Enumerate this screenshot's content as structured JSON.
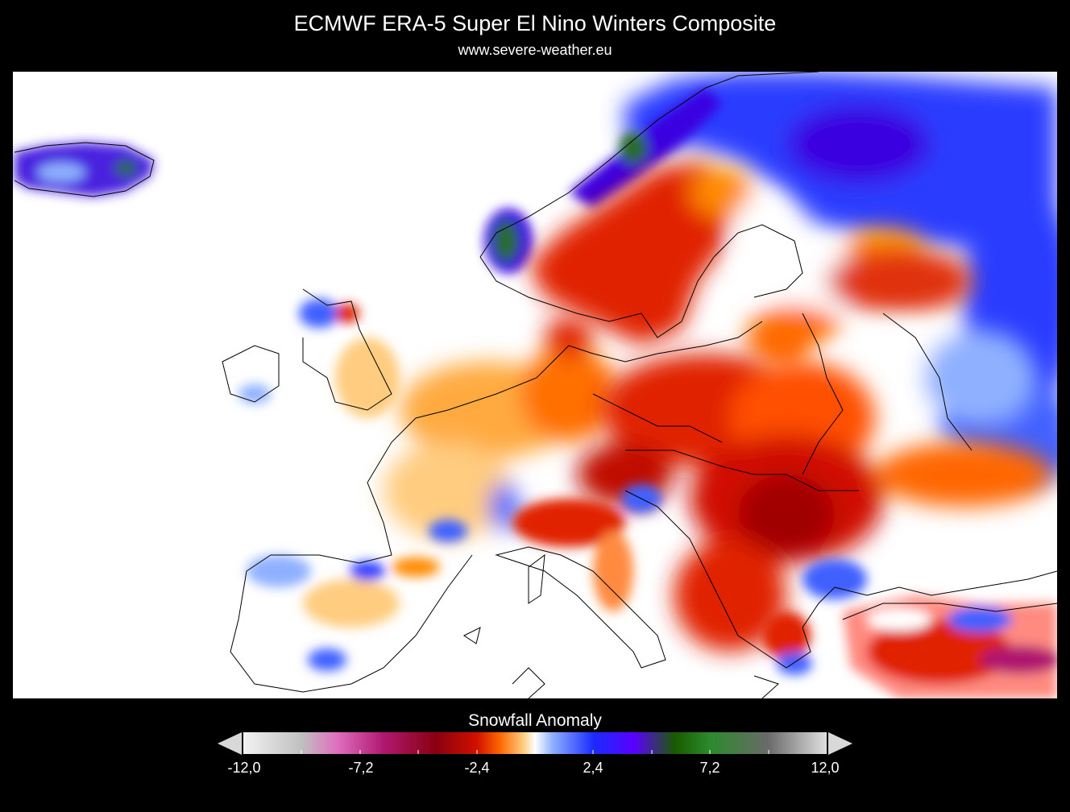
{
  "header": {
    "title": "ECMWF ERA-5 Super El Nino Winters Composite",
    "subtitle": "www.severe-weather.eu"
  },
  "legend": {
    "title": "Snowfall Anomaly",
    "ticks": [
      "-12,0",
      "-7,2",
      "-2,4",
      "2,4",
      "7,2",
      "12,0"
    ],
    "min": -12.0,
    "max": 12.0,
    "colors": [
      "#f2f2f2",
      "#c0c0c0",
      "#e070c0",
      "#b01870",
      "#8a0010",
      "#d01000",
      "#ff6600",
      "#ffcc80",
      "#ffffff",
      "#8fb0ff",
      "#1a2cff",
      "#5a00ff",
      "#1a5a00",
      "#2c8a2c",
      "#6a6a6a",
      "#e0e0e0"
    ]
  },
  "map": {
    "region": "Europe",
    "colors": {
      "positive_blue": "#2c3cff",
      "positive_purple": "#4a00e0",
      "positive_green": "#2a6a2a",
      "negative_orange": "#ff8a00",
      "negative_red": "#e02000",
      "negative_darkred": "#a00000",
      "neutral": "#ffffff"
    }
  }
}
